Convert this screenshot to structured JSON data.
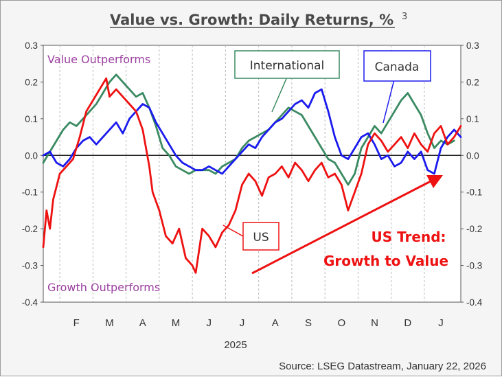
{
  "chart_data": {
    "type": "line",
    "title": "Value vs. Growth: Daily Returns, %",
    "title_superscript": "3",
    "xlabel": "2025",
    "source": "Source: LSEG Datastream, January 22, 2026",
    "ylim": [
      -0.4,
      0.3
    ],
    "y_ticks": [
      "0.3",
      "0.2",
      "0.1",
      "0.0",
      "-0.1",
      "-0.2",
      "-0.3",
      "-0.4"
    ],
    "y_tick_values": [
      0.3,
      0.2,
      0.1,
      0.0,
      -0.1,
      -0.2,
      -0.3,
      -0.4
    ],
    "x_range": [
      0,
      12.6
    ],
    "months": [
      "F",
      "M",
      "A",
      "M",
      "J",
      "J",
      "A",
      "S",
      "O",
      "N",
      "D",
      "J"
    ],
    "month_positions": [
      1,
      2,
      3,
      4,
      5,
      6,
      7,
      8,
      9,
      10,
      11,
      12
    ],
    "annotations": {
      "top": "Value Outperforms",
      "bottom": "Growth Outperforms",
      "trend_line1": "US Trend:",
      "trend_line2": "Growth to Value"
    },
    "series": [
      {
        "name": "US",
        "color": "#ee1111",
        "x": [
          0,
          0.1,
          0.2,
          0.3,
          0.5,
          0.7,
          0.9,
          1.1,
          1.3,
          1.5,
          1.7,
          1.9,
          2.0,
          2.2,
          2.4,
          2.6,
          2.8,
          3.0,
          3.2,
          3.3,
          3.5,
          3.7,
          3.9,
          4.1,
          4.3,
          4.5,
          4.6,
          4.8,
          5.0,
          5.2,
          5.4,
          5.6,
          5.8,
          6.0,
          6.2,
          6.4,
          6.6,
          6.8,
          7.0,
          7.2,
          7.4,
          7.6,
          7.8,
          8.0,
          8.2,
          8.4,
          8.6,
          8.8,
          9.0,
          9.2,
          9.4,
          9.6,
          9.8,
          10.0,
          10.2,
          10.4,
          10.6,
          10.8,
          11.0,
          11.2,
          11.4,
          11.6,
          11.8,
          12.0,
          12.2,
          12.4,
          12.6
        ],
        "values": [
          -0.25,
          -0.15,
          -0.2,
          -0.12,
          -0.05,
          -0.03,
          -0.01,
          0.05,
          0.12,
          0.15,
          0.18,
          0.21,
          0.16,
          0.18,
          0.16,
          0.14,
          0.12,
          0.07,
          -0.03,
          -0.1,
          -0.15,
          -0.22,
          -0.24,
          -0.2,
          -0.28,
          -0.3,
          -0.32,
          -0.2,
          -0.22,
          -0.25,
          -0.21,
          -0.19,
          -0.15,
          -0.08,
          -0.05,
          -0.07,
          -0.11,
          -0.06,
          -0.05,
          -0.03,
          -0.06,
          -0.02,
          -0.04,
          -0.07,
          -0.04,
          -0.02,
          -0.06,
          -0.05,
          -0.08,
          -0.15,
          -0.1,
          -0.05,
          0.03,
          0.06,
          0.04,
          0.01,
          0.03,
          0.05,
          0.02,
          0.06,
          0.03,
          0.01,
          0.06,
          0.08,
          0.03,
          0.05,
          0.08
        ]
      },
      {
        "name": "International",
        "color": "#3a8a62",
        "x": [
          0,
          0.2,
          0.4,
          0.6,
          0.8,
          1.0,
          1.2,
          1.4,
          1.6,
          1.8,
          2.0,
          2.2,
          2.4,
          2.6,
          2.8,
          3.0,
          3.2,
          3.4,
          3.6,
          3.8,
          4.0,
          4.2,
          4.4,
          4.6,
          4.8,
          5.0,
          5.2,
          5.4,
          5.6,
          5.8,
          6.0,
          6.2,
          6.4,
          6.6,
          6.8,
          7.0,
          7.2,
          7.4,
          7.6,
          7.8,
          8.0,
          8.2,
          8.4,
          8.6,
          8.8,
          9.0,
          9.2,
          9.4,
          9.6,
          9.8,
          10.0,
          10.2,
          10.4,
          10.6,
          10.8,
          11.0,
          11.2,
          11.4,
          11.6,
          11.8,
          12.0,
          12.2,
          12.4
        ],
        "values": [
          -0.02,
          0.01,
          0.04,
          0.07,
          0.09,
          0.08,
          0.1,
          0.12,
          0.14,
          0.17,
          0.2,
          0.22,
          0.2,
          0.18,
          0.16,
          0.17,
          0.13,
          0.08,
          0.02,
          0.0,
          -0.03,
          -0.04,
          -0.05,
          -0.04,
          -0.04,
          -0.04,
          -0.05,
          -0.03,
          -0.02,
          -0.01,
          0.02,
          0.04,
          0.05,
          0.06,
          0.07,
          0.09,
          0.11,
          0.13,
          0.12,
          0.11,
          0.08,
          0.05,
          0.02,
          -0.01,
          -0.02,
          -0.05,
          -0.08,
          -0.05,
          0.02,
          0.05,
          0.08,
          0.06,
          0.09,
          0.12,
          0.15,
          0.17,
          0.14,
          0.11,
          0.06,
          0.02,
          0.04,
          0.03,
          0.04
        ]
      },
      {
        "name": "Canada",
        "color": "#1a1aee",
        "x": [
          0,
          0.2,
          0.4,
          0.6,
          0.8,
          1.0,
          1.2,
          1.4,
          1.6,
          1.8,
          2.0,
          2.2,
          2.4,
          2.6,
          2.8,
          3.0,
          3.2,
          3.4,
          3.6,
          3.8,
          4.0,
          4.2,
          4.4,
          4.6,
          4.8,
          5.0,
          5.2,
          5.4,
          5.6,
          5.8,
          6.0,
          6.2,
          6.4,
          6.6,
          6.8,
          7.0,
          7.2,
          7.4,
          7.6,
          7.8,
          8.0,
          8.2,
          8.4,
          8.6,
          8.8,
          9.0,
          9.2,
          9.4,
          9.6,
          9.8,
          10.0,
          10.2,
          10.4,
          10.6,
          10.8,
          11.0,
          11.2,
          11.4,
          11.6,
          11.8,
          12.0,
          12.2,
          12.4,
          12.6
        ],
        "values": [
          0.0,
          0.01,
          -0.02,
          -0.03,
          -0.01,
          0.02,
          0.04,
          0.05,
          0.03,
          0.05,
          0.07,
          0.09,
          0.06,
          0.1,
          0.12,
          0.14,
          0.13,
          0.09,
          0.06,
          0.03,
          0.0,
          -0.02,
          -0.03,
          -0.04,
          -0.04,
          -0.03,
          -0.04,
          -0.05,
          -0.03,
          -0.01,
          0.01,
          0.03,
          0.02,
          0.05,
          0.07,
          0.09,
          0.1,
          0.12,
          0.14,
          0.15,
          0.13,
          0.17,
          0.18,
          0.12,
          0.05,
          0.0,
          -0.01,
          0.02,
          0.05,
          0.06,
          0.03,
          -0.01,
          0.0,
          -0.03,
          -0.02,
          0.01,
          -0.01,
          0.01,
          -0.04,
          -0.05,
          0.02,
          0.05,
          0.07,
          0.05
        ]
      }
    ]
  }
}
